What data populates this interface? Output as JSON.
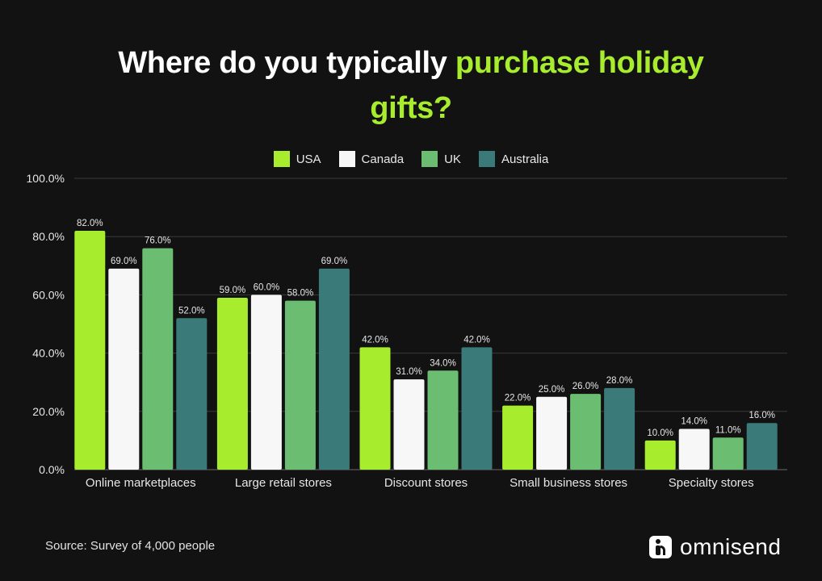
{
  "title": {
    "part1": "Where do you typically ",
    "part2": "purchase holiday",
    "part3": "gifts?"
  },
  "source": "Source: Survey of 4,000 people",
  "brand": "omnisend",
  "colors": {
    "USA": "#a8ec2e",
    "Canada": "#f7f7f7",
    "UK": "#6bbd72",
    "Australia": "#3a7a78",
    "accent": "#a8ec2e",
    "background": "#121212"
  },
  "chart_data": {
    "type": "bar",
    "categories": [
      "Online marketplaces",
      "Large retail stores",
      "Discount stores",
      "Small business stores",
      "Specialty stores"
    ],
    "series": [
      {
        "name": "USA",
        "values": [
          82.0,
          59.0,
          42.0,
          22.0,
          10.0
        ]
      },
      {
        "name": "Canada",
        "values": [
          69.0,
          60.0,
          31.0,
          25.0,
          14.0
        ]
      },
      {
        "name": "UK",
        "values": [
          76.0,
          58.0,
          34.0,
          26.0,
          11.0
        ]
      },
      {
        "name": "Australia",
        "values": [
          52.0,
          69.0,
          42.0,
          28.0,
          16.0
        ]
      }
    ],
    "yticks": [
      "0.0%",
      "20.0%",
      "40.0%",
      "60.0%",
      "80.0%",
      "100.0%"
    ],
    "ylim": [
      0,
      100
    ],
    "grid": true,
    "legend": "top-center"
  }
}
